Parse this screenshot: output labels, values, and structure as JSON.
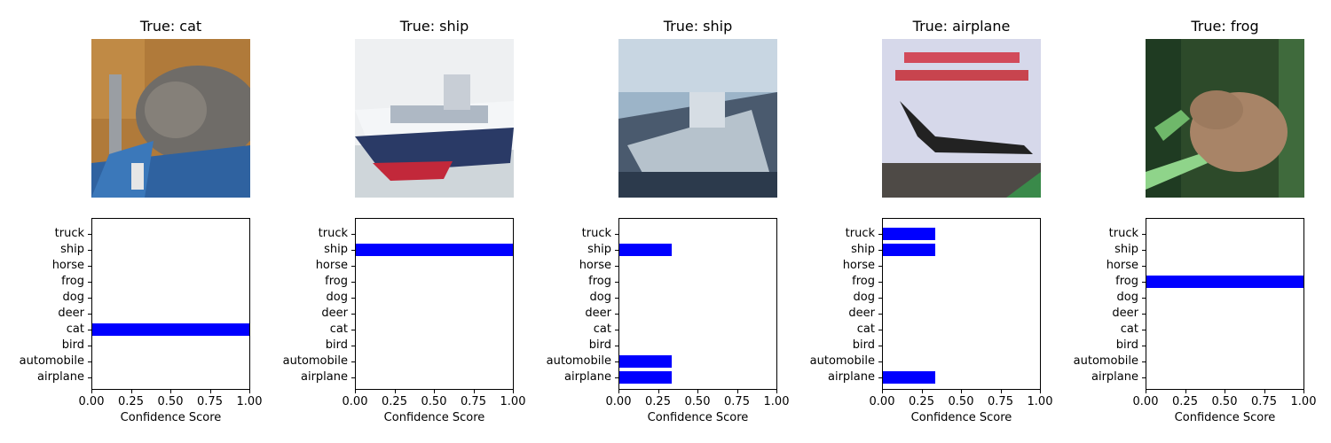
{
  "chart_data": [
    {
      "type": "bar",
      "orientation": "horizontal",
      "title": "True: cat",
      "image": "cat",
      "categories": [
        "airplane",
        "automobile",
        "bird",
        "cat",
        "deer",
        "dog",
        "frog",
        "horse",
        "ship",
        "truck"
      ],
      "values": [
        0,
        0,
        0,
        1.0,
        0,
        0,
        0,
        0,
        0,
        0
      ],
      "xlabel": "Confidence Score",
      "xlim": [
        0,
        1
      ],
      "xticks": [
        "0.00",
        "0.25",
        "0.50",
        "0.75",
        "1.00"
      ],
      "color": "#0000ff"
    },
    {
      "type": "bar",
      "orientation": "horizontal",
      "title": "True: ship",
      "image": "ship",
      "categories": [
        "airplane",
        "automobile",
        "bird",
        "cat",
        "deer",
        "dog",
        "frog",
        "horse",
        "ship",
        "truck"
      ],
      "values": [
        0,
        0,
        0,
        0,
        0,
        0,
        0,
        0,
        1.0,
        0
      ],
      "xlabel": "Confidence Score",
      "xlim": [
        0,
        1
      ],
      "xticks": [
        "0.00",
        "0.25",
        "0.50",
        "0.75",
        "1.00"
      ],
      "color": "#0000ff"
    },
    {
      "type": "bar",
      "orientation": "horizontal",
      "title": "True: ship",
      "image": "ship",
      "categories": [
        "airplane",
        "automobile",
        "bird",
        "cat",
        "deer",
        "dog",
        "frog",
        "horse",
        "ship",
        "truck"
      ],
      "values": [
        0.333,
        0.333,
        0,
        0,
        0,
        0,
        0,
        0,
        0.333,
        0
      ],
      "xlabel": "Confidence Score",
      "xlim": [
        0,
        1
      ],
      "xticks": [
        "0.00",
        "0.25",
        "0.50",
        "0.75",
        "1.00"
      ],
      "color": "#0000ff"
    },
    {
      "type": "bar",
      "orientation": "horizontal",
      "title": "True: airplane",
      "image": "airplane",
      "categories": [
        "airplane",
        "automobile",
        "bird",
        "cat",
        "deer",
        "dog",
        "frog",
        "horse",
        "ship",
        "truck"
      ],
      "values": [
        0.333,
        0,
        0,
        0,
        0,
        0,
        0,
        0,
        0.333,
        0.333
      ],
      "xlabel": "Confidence Score",
      "xlim": [
        0,
        1
      ],
      "xticks": [
        "0.00",
        "0.25",
        "0.50",
        "0.75",
        "1.00"
      ],
      "color": "#0000ff"
    },
    {
      "type": "bar",
      "orientation": "horizontal",
      "title": "True: frog",
      "image": "frog",
      "categories": [
        "airplane",
        "automobile",
        "bird",
        "cat",
        "deer",
        "dog",
        "frog",
        "horse",
        "ship",
        "truck"
      ],
      "values": [
        0,
        0,
        0,
        0,
        0,
        0,
        1.0,
        0,
        0,
        0
      ],
      "xlabel": "Confidence Score",
      "xlim": [
        0,
        1
      ],
      "xticks": [
        "0.00",
        "0.25",
        "0.50",
        "0.75",
        "1.00"
      ],
      "color": "#0000ff"
    }
  ]
}
